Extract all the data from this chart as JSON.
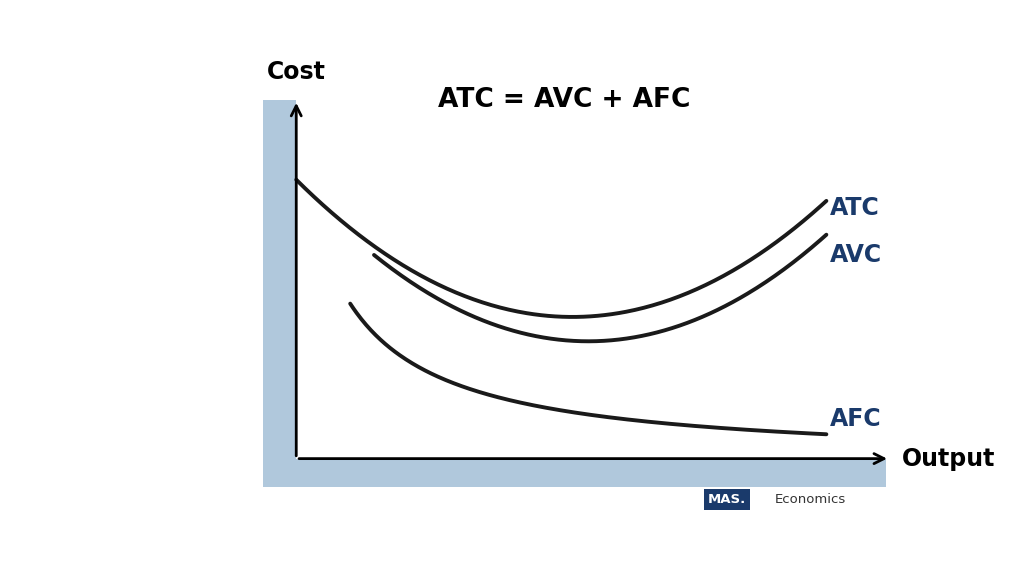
{
  "title": "ATC = AVC + AFC",
  "xlabel": "Output",
  "ylabel": "Cost",
  "curve_color": "#1a1a1a",
  "label_color": "#1a3a6b",
  "background_color": "#ffffff",
  "band_color": "#b0c8dc",
  "title_fontsize": 19,
  "label_fontsize": 17,
  "axis_label_fontsize": 17,
  "curve_linewidth": 2.8,
  "mas_box_color": "#1a3a6b",
  "mas_text_color": "#ffffff",
  "economics_text_color": "#333333"
}
